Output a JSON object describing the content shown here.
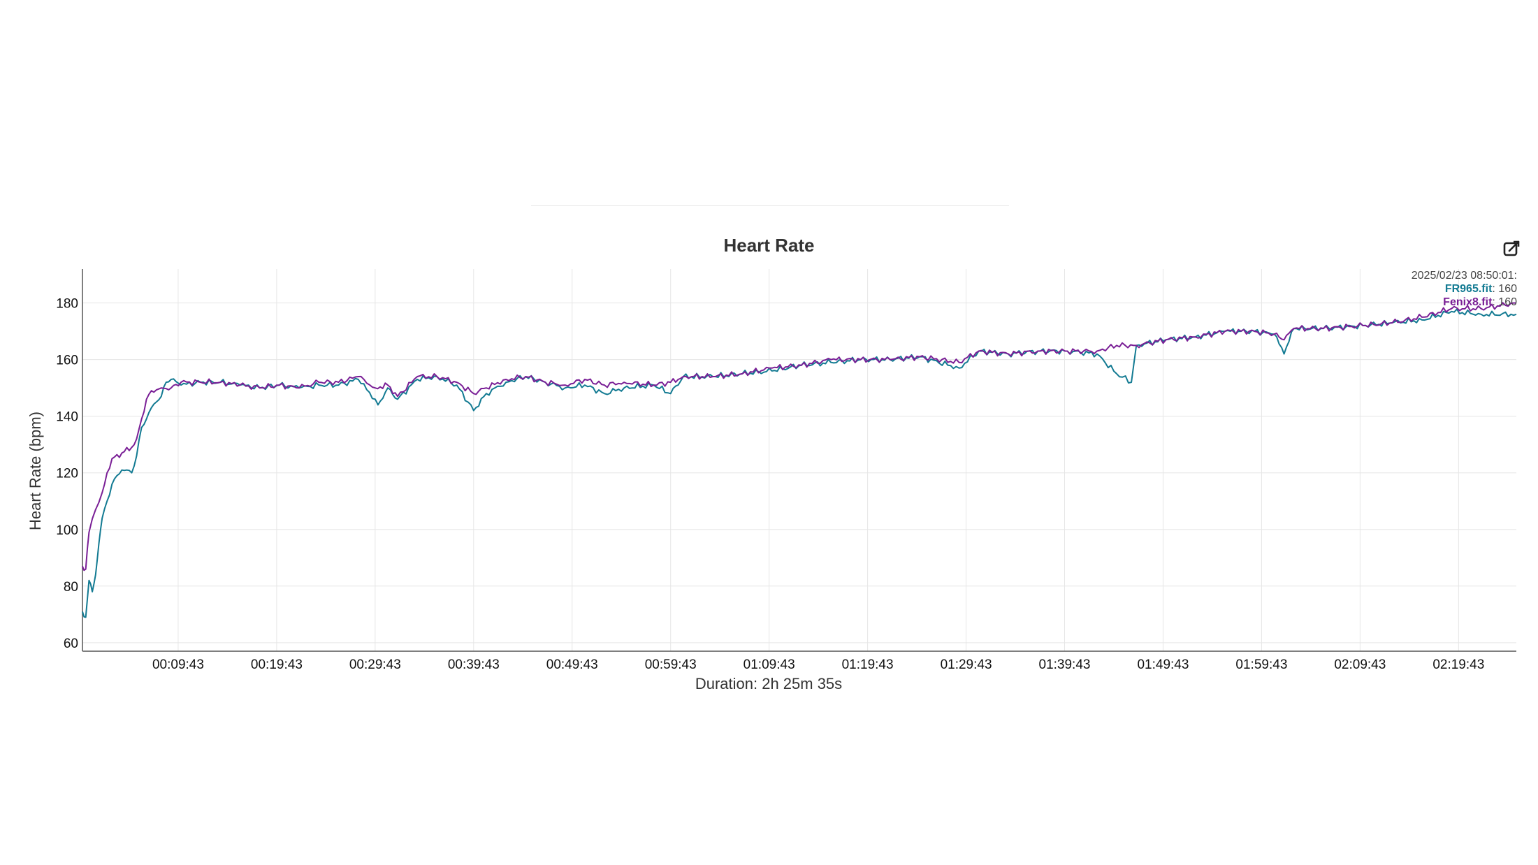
{
  "chart_data": {
    "type": "line",
    "title": "Heart Rate",
    "xlabel": "Duration: 2h 25m 35s",
    "ylabel": "Heart Rate (bpm)",
    "x_unit": "elapsed time (hh:mm:ss)",
    "xlim": [
      "00:00:00",
      "02:25:35"
    ],
    "ylim": [
      57,
      192
    ],
    "y_ticks": [
      60,
      80,
      100,
      120,
      140,
      160,
      180
    ],
    "x_tick_labels": [
      "00:09:43",
      "00:19:43",
      "00:29:43",
      "00:39:43",
      "00:49:43",
      "00:59:43",
      "01:09:43",
      "01:19:43",
      "01:29:43",
      "01:39:43",
      "01:49:43",
      "01:59:43",
      "02:09:43",
      "02:19:43"
    ],
    "grid": true,
    "series": [
      {
        "name": "FR965.fit",
        "color": "#127a92",
        "points": [
          [
            "00:00:00",
            71
          ],
          [
            "00:00:20",
            69
          ],
          [
            "00:00:40",
            82
          ],
          [
            "00:01:00",
            78
          ],
          [
            "00:01:20",
            84
          ],
          [
            "00:01:40",
            95
          ],
          [
            "00:02:00",
            104
          ],
          [
            "00:02:30",
            110
          ],
          [
            "00:03:00",
            116
          ],
          [
            "00:03:30",
            119
          ],
          [
            "00:04:00",
            121
          ],
          [
            "00:04:30",
            121
          ],
          [
            "00:05:00",
            120
          ],
          [
            "00:05:30",
            126
          ],
          [
            "00:06:00",
            136
          ],
          [
            "00:06:30",
            139
          ],
          [
            "00:07:00",
            143
          ],
          [
            "00:07:30",
            145
          ],
          [
            "00:08:00",
            147
          ],
          [
            "00:08:30",
            152
          ],
          [
            "00:09:00",
            153
          ],
          [
            "00:10:00",
            151
          ],
          [
            "00:12:00",
            152
          ],
          [
            "00:14:00",
            152
          ],
          [
            "00:16:00",
            151
          ],
          [
            "00:18:00",
            150
          ],
          [
            "00:20:00",
            151
          ],
          [
            "00:22:00",
            150
          ],
          [
            "00:24:00",
            151
          ],
          [
            "00:26:00",
            151
          ],
          [
            "00:28:00",
            153
          ],
          [
            "00:29:43",
            146
          ],
          [
            "00:30:00",
            144
          ],
          [
            "00:31:00",
            150
          ],
          [
            "00:32:00",
            146
          ],
          [
            "00:34:00",
            153
          ],
          [
            "00:36:00",
            154
          ],
          [
            "00:38:00",
            151
          ],
          [
            "00:39:43",
            142
          ],
          [
            "00:41:00",
            148
          ],
          [
            "00:43:00",
            152
          ],
          [
            "00:45:00",
            154
          ],
          [
            "00:47:00",
            152
          ],
          [
            "00:49:00",
            150
          ],
          [
            "00:51:00",
            151
          ],
          [
            "00:53:00",
            148
          ],
          [
            "00:55:00",
            150
          ],
          [
            "00:58:00",
            151
          ],
          [
            "00:59:43",
            148
          ],
          [
            "01:01:00",
            154
          ],
          [
            "01:04:00",
            154
          ],
          [
            "01:07:00",
            155
          ],
          [
            "01:10:00",
            156
          ],
          [
            "01:13:00",
            158
          ],
          [
            "01:16:00",
            159
          ],
          [
            "01:19:00",
            160
          ],
          [
            "01:22:00",
            160
          ],
          [
            "01:25:00",
            161
          ],
          [
            "01:29:00",
            157
          ],
          [
            "01:31:00",
            163
          ],
          [
            "01:34:00",
            162
          ],
          [
            "01:37:00",
            163
          ],
          [
            "01:40:00",
            163
          ],
          [
            "01:43:00",
            162
          ],
          [
            "01:45:00",
            155
          ],
          [
            "01:46:30",
            152
          ],
          [
            "01:47:00",
            165
          ],
          [
            "01:50:00",
            167
          ],
          [
            "01:53:00",
            168
          ],
          [
            "01:56:00",
            170
          ],
          [
            "01:59:00",
            170
          ],
          [
            "02:01:00",
            169
          ],
          [
            "02:02:00",
            162
          ],
          [
            "02:03:00",
            171
          ],
          [
            "02:06:00",
            171
          ],
          [
            "02:10:00",
            172
          ],
          [
            "02:13:00",
            173
          ],
          [
            "02:16:00",
            174
          ],
          [
            "02:19:00",
            177
          ],
          [
            "02:22:00",
            176
          ],
          [
            "02:25:35",
            176
          ]
        ]
      },
      {
        "name": "Fenix8.fit",
        "color": "#7a1f96",
        "points": [
          [
            "00:00:00",
            87
          ],
          [
            "00:00:20",
            86
          ],
          [
            "00:00:40",
            99
          ],
          [
            "00:01:20",
            107
          ],
          [
            "00:02:00",
            113
          ],
          [
            "00:02:30",
            120
          ],
          [
            "00:03:00",
            125
          ],
          [
            "00:04:00",
            127
          ],
          [
            "00:05:00",
            129
          ],
          [
            "00:05:30",
            132
          ],
          [
            "00:06:00",
            139
          ],
          [
            "00:06:30",
            146
          ],
          [
            "00:07:00",
            149
          ],
          [
            "00:08:00",
            150
          ],
          [
            "00:09:00",
            150
          ],
          [
            "00:10:00",
            152
          ],
          [
            "00:12:00",
            152
          ],
          [
            "00:14:00",
            152
          ],
          [
            "00:16:00",
            151
          ],
          [
            "00:18:00",
            150
          ],
          [
            "00:20:00",
            151
          ],
          [
            "00:22:00",
            150
          ],
          [
            "00:24:00",
            152
          ],
          [
            "00:26:00",
            152
          ],
          [
            "00:28:00",
            154
          ],
          [
            "00:29:43",
            150
          ],
          [
            "00:31:00",
            151
          ],
          [
            "00:32:00",
            147
          ],
          [
            "00:34:00",
            154
          ],
          [
            "00:36:00",
            154
          ],
          [
            "00:38:00",
            152
          ],
          [
            "00:39:43",
            148
          ],
          [
            "00:41:00",
            150
          ],
          [
            "00:43:00",
            153
          ],
          [
            "00:45:00",
            154
          ],
          [
            "00:47:00",
            152
          ],
          [
            "00:49:00",
            151
          ],
          [
            "00:51:00",
            153
          ],
          [
            "00:53:00",
            151
          ],
          [
            "00:55:00",
            152
          ],
          [
            "00:58:00",
            151
          ],
          [
            "00:59:43",
            152
          ],
          [
            "01:01:00",
            154
          ],
          [
            "01:04:00",
            154
          ],
          [
            "01:07:00",
            155
          ],
          [
            "01:10:00",
            157
          ],
          [
            "01:13:00",
            158
          ],
          [
            "01:16:00",
            160
          ],
          [
            "01:19:00",
            160
          ],
          [
            "01:22:00",
            160
          ],
          [
            "01:25:00",
            161
          ],
          [
            "01:29:00",
            159
          ],
          [
            "01:31:00",
            163
          ],
          [
            "01:34:00",
            162
          ],
          [
            "01:37:00",
            163
          ],
          [
            "01:40:00",
            163
          ],
          [
            "01:43:00",
            163
          ],
          [
            "01:45:00",
            165
          ],
          [
            "01:47:00",
            165
          ],
          [
            "01:50:00",
            167
          ],
          [
            "01:53:00",
            168
          ],
          [
            "01:56:00",
            170
          ],
          [
            "01:59:00",
            170
          ],
          [
            "02:01:00",
            169
          ],
          [
            "02:02:00",
            167
          ],
          [
            "02:03:00",
            171
          ],
          [
            "02:06:00",
            171
          ],
          [
            "02:10:00",
            172
          ],
          [
            "02:13:00",
            173
          ],
          [
            "02:16:00",
            175
          ],
          [
            "02:19:00",
            178
          ],
          [
            "02:22:00",
            178
          ],
          [
            "02:25:35",
            180
          ]
        ]
      }
    ],
    "tooltip": {
      "timestamp": "2025/02/23 08:50:01:",
      "entries": [
        {
          "name": "FR965.fit",
          "value": "160",
          "color": "#127a92"
        },
        {
          "name": "Fenix8.fit",
          "value": "160",
          "color": "#7a1f96"
        }
      ]
    }
  },
  "toolbar": {
    "edit_icon": "external-edit-icon"
  }
}
